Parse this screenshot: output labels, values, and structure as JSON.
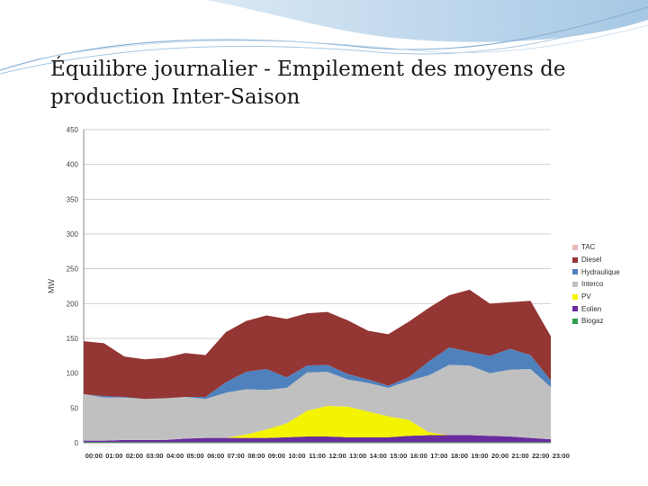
{
  "slide": {
    "title_line1": "Équilibre journalier - Empilement des moyens de",
    "title_line2": "production Inter-Saison"
  },
  "chart_data": {
    "type": "area",
    "stacked": true,
    "ylabel": "MW",
    "xlabel": "",
    "ylim": [
      0,
      450
    ],
    "yticks": [
      0,
      50,
      100,
      150,
      200,
      250,
      300,
      350,
      400,
      450
    ],
    "ytick_labels": [
      "0",
      "50",
      "100",
      "150",
      "200",
      "250",
      "300",
      "350",
      "400",
      "450"
    ],
    "grid": true,
    "legend_position": "right",
    "categories": [
      "00:00",
      "01:00",
      "02:00",
      "03:00",
      "04:00",
      "05:00",
      "06:00",
      "07:00",
      "08:00",
      "09:00",
      "10:00",
      "11:00",
      "12:00",
      "13:00",
      "14:00",
      "15:00",
      "16:00",
      "17:00",
      "18:00",
      "19:00",
      "20:00",
      "21:00",
      "22:00",
      "23:00"
    ],
    "x_tick_labels": [
      "00:00",
      "01:00",
      "02:00",
      "03:00",
      "04:00",
      "05:00",
      "06:00",
      "07:00",
      "08:00",
      "09:00",
      "10:00",
      "11:00",
      "12:00",
      "13:00",
      "14:00",
      "15:00",
      "16:00",
      "17:00",
      "18:00",
      "19:00",
      "20:00",
      "21:00",
      "22:00",
      "23:00"
    ],
    "series": [
      {
        "name": "Biogaz",
        "color": "#2e9e4f",
        "values": [
          1,
          1,
          1,
          1,
          1,
          1,
          1,
          1,
          1,
          1,
          1,
          1,
          1,
          1,
          1,
          1,
          1,
          1,
          1,
          1,
          1,
          1,
          1,
          1
        ]
      },
      {
        "name": "Eolien",
        "color": "#6a2b9e",
        "values": [
          2,
          2,
          3,
          3,
          3,
          5,
          6,
          6,
          6,
          6,
          7,
          8,
          8,
          7,
          7,
          7,
          9,
          10,
          10,
          10,
          9,
          8,
          6,
          4
        ]
      },
      {
        "name": "PV",
        "color": "#f4f400",
        "values": [
          0,
          0,
          0,
          0,
          0,
          0,
          0,
          0,
          5,
          12,
          20,
          37,
          44,
          44,
          37,
          30,
          23,
          4,
          0,
          0,
          0,
          0,
          0,
          0
        ]
      },
      {
        "name": "Interco",
        "color": "#c0c0c0",
        "values": [
          67,
          62,
          61,
          59,
          60,
          60,
          56,
          65,
          65,
          57,
          51,
          55,
          49,
          39,
          41,
          41,
          56,
          82,
          101,
          100,
          90,
          96,
          99,
          75
        ]
      },
      {
        "name": "Hydraulique",
        "color": "#4f81bd",
        "values": [
          0,
          2,
          1,
          0,
          0,
          0,
          3,
          15,
          25,
          30,
          15,
          10,
          10,
          8,
          5,
          3,
          5,
          20,
          25,
          20,
          25,
          30,
          20,
          10
        ]
      },
      {
        "name": "Diesel",
        "color": "#943634",
        "values": [
          76,
          76,
          58,
          57,
          58,
          63,
          60,
          72,
          73,
          77,
          84,
          75,
          76,
          77,
          70,
          74,
          80,
          77,
          75,
          89,
          75,
          67,
          78,
          63
        ]
      },
      {
        "name": "TAC",
        "color": "#e6b9b8",
        "values": [
          0,
          0,
          0,
          0,
          0,
          0,
          0,
          0,
          0,
          0,
          0,
          0,
          0,
          0,
          0,
          0,
          0,
          0,
          0,
          0,
          0,
          0,
          0,
          0
        ]
      }
    ],
    "legend_order": [
      "TAC",
      "Diesel",
      "Hydraulique",
      "Interco",
      "PV",
      "Eolien",
      "Biogaz"
    ]
  }
}
